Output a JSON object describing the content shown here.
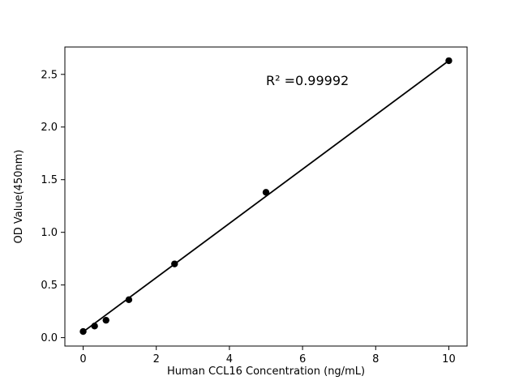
{
  "chart_data": {
    "type": "scatter",
    "title": "",
    "xlabel": "Human CCL16 Concentration (ng/mL)",
    "ylabel": "OD Value(450nm)",
    "annotation": "R² =0.99992",
    "annotation_pos": {
      "x": 5.0,
      "y": 2.4
    },
    "x": [
      0,
      0.3125,
      0.625,
      1.25,
      2.5,
      5,
      10
    ],
    "y": [
      0.058,
      0.11,
      0.165,
      0.36,
      0.7,
      1.38,
      2.63
    ],
    "fit_line": {
      "x1": 0,
      "y1": 0.055,
      "x2": 10,
      "y2": 2.63
    },
    "xlim": [
      -0.5,
      10.5
    ],
    "ylim": [
      -0.08,
      2.76
    ],
    "xticks": [
      0,
      2,
      4,
      6,
      8,
      10
    ],
    "xtick_labels": [
      "0",
      "2",
      "4",
      "6",
      "8",
      "10"
    ],
    "yticks": [
      0.0,
      0.5,
      1.0,
      1.5,
      2.0,
      2.5
    ],
    "ytick_labels": [
      "0.0",
      "0.5",
      "1.0",
      "1.5",
      "2.0",
      "2.5"
    ],
    "grid": false,
    "legend": "none",
    "marker_color": "#000000",
    "line_color": "#000000",
    "background": "#ffffff"
  }
}
